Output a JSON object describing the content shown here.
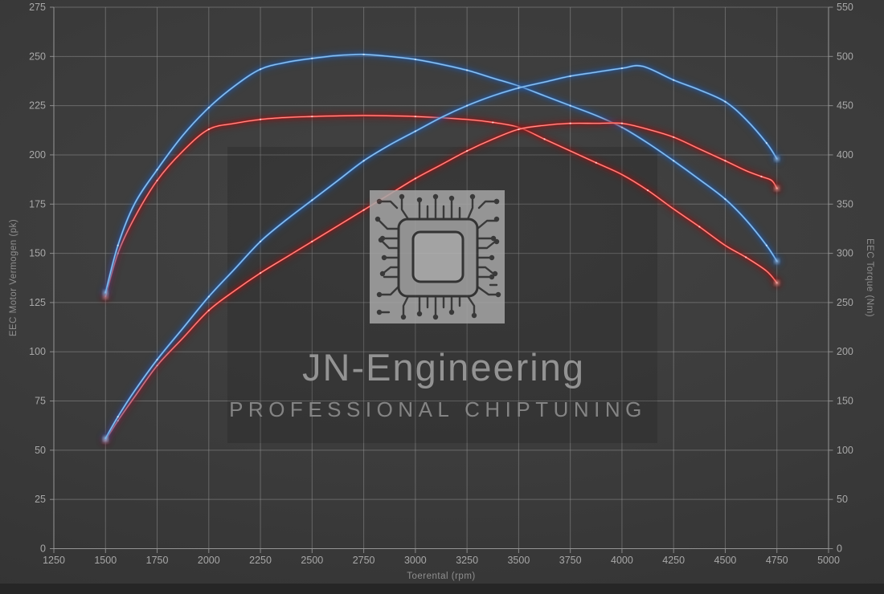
{
  "watermark": {
    "brand": "JN-Engineering",
    "tagline": "PROFESSIONAL CHIPTUNING",
    "icon": "cpu-chip-icon"
  },
  "colors": {
    "blue_core": "#4d93d8",
    "blue_glow": "#2457a0",
    "blue_light": "#b7d7f2",
    "red_core": "#e33636",
    "red_glow": "#8c1616",
    "red_light": "#ffc2b8",
    "grid": "#969696",
    "spine": "#9a9a9a",
    "tick_text": "#a8a8a8",
    "background": "#3b3b3b",
    "bottom_strip": "#262626"
  },
  "chart_data": {
    "type": "line",
    "xlabel": "Toerental (rpm)",
    "ylabel_left": "EEC Motor Vermogen (pk)",
    "ylabel_right": "EEC Torque (Nm)",
    "x_range": [
      1250,
      5000
    ],
    "y_left_range": [
      0,
      275
    ],
    "y_right_range": [
      0,
      550
    ],
    "x_ticks": [
      1250,
      1500,
      1750,
      2000,
      2250,
      2500,
      2750,
      3000,
      3250,
      3500,
      3750,
      4000,
      4250,
      4500,
      4750,
      5000
    ],
    "y_left_ticks": [
      0,
      25,
      50,
      75,
      100,
      125,
      150,
      175,
      200,
      225,
      250,
      275
    ],
    "y_right_ticks": [
      0,
      50,
      100,
      150,
      200,
      250,
      300,
      350,
      400,
      450,
      500,
      550
    ],
    "grid": true,
    "legend": "none",
    "series": [
      {
        "id": "red_torque",
        "axis": "right",
        "unit": "Nm",
        "color_key": "red",
        "peak": {
          "rpm": 2750,
          "value": 440
        },
        "points": [
          [
            1500,
            256
          ],
          [
            1560,
            300
          ],
          [
            1640,
            336
          ],
          [
            1750,
            374
          ],
          [
            1875,
            404
          ],
          [
            2000,
            426
          ],
          [
            2125,
            432
          ],
          [
            2250,
            436
          ],
          [
            2375,
            438
          ],
          [
            2500,
            439
          ],
          [
            2750,
            440
          ],
          [
            3000,
            439
          ],
          [
            3250,
            436
          ],
          [
            3375,
            433
          ],
          [
            3500,
            428
          ],
          [
            3625,
            416
          ],
          [
            3750,
            404
          ],
          [
            3875,
            392
          ],
          [
            4000,
            380
          ],
          [
            4125,
            364
          ],
          [
            4250,
            345
          ],
          [
            4375,
            327
          ],
          [
            4500,
            308
          ],
          [
            4600,
            296
          ],
          [
            4700,
            282
          ],
          [
            4750,
            270
          ]
        ]
      },
      {
        "id": "blue_torque",
        "axis": "right",
        "unit": "Nm",
        "color_key": "blue",
        "peak": {
          "rpm": 2750,
          "value": 502
        },
        "points": [
          [
            1500,
            260
          ],
          [
            1560,
            308
          ],
          [
            1640,
            350
          ],
          [
            1750,
            385
          ],
          [
            1875,
            420
          ],
          [
            2000,
            448
          ],
          [
            2125,
            470
          ],
          [
            2250,
            487
          ],
          [
            2375,
            494
          ],
          [
            2500,
            498
          ],
          [
            2625,
            501
          ],
          [
            2750,
            502
          ],
          [
            2875,
            500
          ],
          [
            3000,
            497
          ],
          [
            3125,
            492
          ],
          [
            3250,
            486
          ],
          [
            3375,
            478
          ],
          [
            3500,
            470
          ],
          [
            3625,
            460
          ],
          [
            3750,
            450
          ],
          [
            3875,
            440
          ],
          [
            4000,
            428
          ],
          [
            4125,
            412
          ],
          [
            4250,
            394
          ],
          [
            4375,
            375
          ],
          [
            4500,
            355
          ],
          [
            4600,
            334
          ],
          [
            4700,
            308
          ],
          [
            4750,
            292
          ]
        ]
      },
      {
        "id": "red_power",
        "axis": "left",
        "unit": "pk",
        "color_key": "red",
        "peak": {
          "rpm": 3900,
          "value": 216
        },
        "points": [
          [
            1500,
            55
          ],
          [
            1560,
            65
          ],
          [
            1640,
            77
          ],
          [
            1750,
            93
          ],
          [
            1875,
            107
          ],
          [
            2000,
            121
          ],
          [
            2125,
            131
          ],
          [
            2250,
            140
          ],
          [
            2375,
            148
          ],
          [
            2500,
            156
          ],
          [
            2625,
            164
          ],
          [
            2750,
            172
          ],
          [
            2875,
            180
          ],
          [
            3000,
            188
          ],
          [
            3125,
            195
          ],
          [
            3250,
            202
          ],
          [
            3375,
            208
          ],
          [
            3500,
            213
          ],
          [
            3625,
            215
          ],
          [
            3750,
            216
          ],
          [
            3875,
            216
          ],
          [
            4000,
            216
          ],
          [
            4125,
            213
          ],
          [
            4250,
            209
          ],
          [
            4375,
            203
          ],
          [
            4500,
            197
          ],
          [
            4600,
            192
          ],
          [
            4675,
            189
          ],
          [
            4725,
            187
          ],
          [
            4750,
            183
          ]
        ]
      },
      {
        "id": "blue_power",
        "axis": "left",
        "unit": "pk",
        "color_key": "blue",
        "peak": {
          "rpm": 4100,
          "value": 245
        },
        "points": [
          [
            1500,
            56
          ],
          [
            1560,
            67
          ],
          [
            1640,
            80
          ],
          [
            1750,
            96
          ],
          [
            1875,
            112
          ],
          [
            2000,
            128
          ],
          [
            2125,
            142
          ],
          [
            2250,
            156
          ],
          [
            2375,
            167
          ],
          [
            2500,
            177
          ],
          [
            2625,
            187
          ],
          [
            2750,
            197
          ],
          [
            2875,
            205
          ],
          [
            3000,
            212
          ],
          [
            3125,
            219
          ],
          [
            3250,
            225
          ],
          [
            3375,
            230
          ],
          [
            3500,
            234
          ],
          [
            3625,
            237
          ],
          [
            3750,
            240
          ],
          [
            3875,
            242
          ],
          [
            4000,
            244
          ],
          [
            4100,
            245
          ],
          [
            4250,
            238
          ],
          [
            4375,
            233
          ],
          [
            4500,
            227
          ],
          [
            4600,
            218
          ],
          [
            4700,
            206
          ],
          [
            4750,
            198
          ]
        ]
      }
    ]
  }
}
